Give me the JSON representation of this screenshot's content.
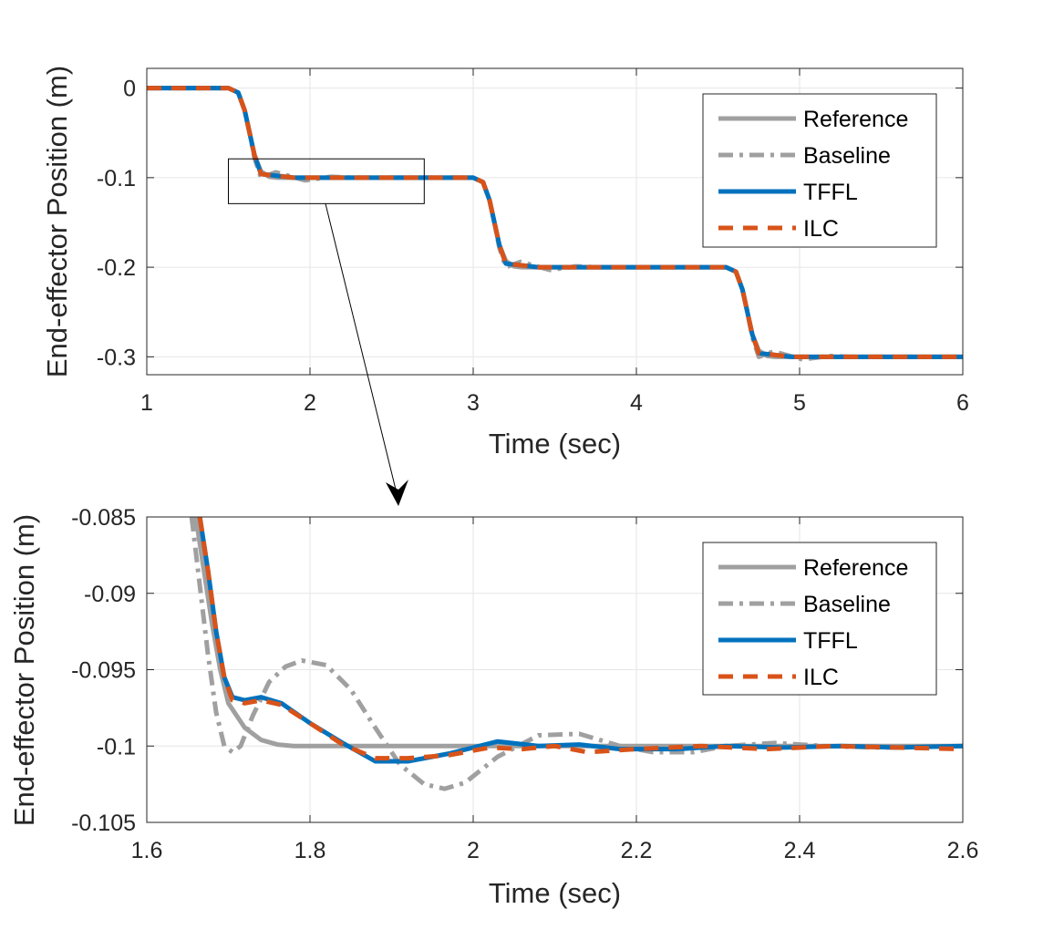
{
  "colors": {
    "reference": "#a0a0a0",
    "baseline": "#a0a0a0",
    "tffl": "#0072bd",
    "ilc": "#d95319",
    "grid": "#e6e6e6",
    "axis": "#262626"
  },
  "chart_data": [
    {
      "type": "line",
      "xlabel": "Time (sec)",
      "ylabel": "End-effector Position (m)",
      "xlim": [
        1,
        6
      ],
      "ylim": [
        -0.32,
        0.022
      ],
      "xticks": [
        "1",
        "2",
        "3",
        "4",
        "5",
        "6"
      ],
      "yticks": [
        "0",
        "-0.1",
        "-0.2",
        "-0.3"
      ],
      "grid": true,
      "legend_position": "top-right",
      "zoom_box": {
        "x": [
          1.5,
          2.7
        ],
        "y": [
          -0.129,
          -0.079
        ]
      },
      "series": [
        {
          "name": "Reference",
          "style": "solid",
          "points": [
            [
              1,
              0
            ],
            [
              1.5,
              0
            ],
            [
              1.56,
              -0.005
            ],
            [
              1.6,
              -0.025
            ],
            [
              1.63,
              -0.05
            ],
            [
              1.66,
              -0.075
            ],
            [
              1.7,
              -0.093
            ],
            [
              1.75,
              -0.099
            ],
            [
              1.8,
              -0.1
            ],
            [
              3.0,
              -0.1
            ],
            [
              3.06,
              -0.105
            ],
            [
              3.1,
              -0.125
            ],
            [
              3.13,
              -0.15
            ],
            [
              3.16,
              -0.175
            ],
            [
              3.2,
              -0.193
            ],
            [
              3.25,
              -0.199
            ],
            [
              3.3,
              -0.2
            ],
            [
              4.55,
              -0.2
            ],
            [
              4.61,
              -0.205
            ],
            [
              4.65,
              -0.225
            ],
            [
              4.68,
              -0.25
            ],
            [
              4.71,
              -0.275
            ],
            [
              4.75,
              -0.293
            ],
            [
              4.8,
              -0.299
            ],
            [
              4.85,
              -0.3
            ],
            [
              6,
              -0.3
            ]
          ]
        },
        {
          "name": "Baseline",
          "style": "dashdot",
          "points": [
            [
              1,
              0
            ],
            [
              1.5,
              0
            ],
            [
              1.56,
              -0.005
            ],
            [
              1.6,
              -0.025
            ],
            [
              1.63,
              -0.05
            ],
            [
              1.66,
              -0.078
            ],
            [
              1.7,
              -0.1
            ],
            [
              1.79,
              -0.094
            ],
            [
              1.97,
              -0.103
            ],
            [
              2.13,
              -0.099
            ],
            [
              2.25,
              -0.1
            ],
            [
              3.0,
              -0.1
            ],
            [
              3.06,
              -0.105
            ],
            [
              3.1,
              -0.125
            ],
            [
              3.13,
              -0.15
            ],
            [
              3.16,
              -0.178
            ],
            [
              3.2,
              -0.2
            ],
            [
              3.29,
              -0.194
            ],
            [
              3.47,
              -0.203
            ],
            [
              3.63,
              -0.199
            ],
            [
              3.75,
              -0.2
            ],
            [
              4.55,
              -0.2
            ],
            [
              4.61,
              -0.205
            ],
            [
              4.65,
              -0.225
            ],
            [
              4.68,
              -0.25
            ],
            [
              4.71,
              -0.278
            ],
            [
              4.75,
              -0.3
            ],
            [
              4.84,
              -0.294
            ],
            [
              5.02,
              -0.303
            ],
            [
              5.18,
              -0.299
            ],
            [
              5.3,
              -0.3
            ],
            [
              6,
              -0.3
            ]
          ]
        },
        {
          "name": "TFFL",
          "style": "solid",
          "points": [
            [
              1,
              0
            ],
            [
              1.5,
              0
            ],
            [
              1.56,
              -0.005
            ],
            [
              1.6,
              -0.025
            ],
            [
              1.63,
              -0.05
            ],
            [
              1.66,
              -0.075
            ],
            [
              1.7,
              -0.096
            ],
            [
              1.8,
              -0.098
            ],
            [
              1.9,
              -0.1
            ],
            [
              2.0,
              -0.1
            ],
            [
              3.0,
              -0.1
            ],
            [
              3.06,
              -0.105
            ],
            [
              3.1,
              -0.125
            ],
            [
              3.13,
              -0.15
            ],
            [
              3.16,
              -0.175
            ],
            [
              3.2,
              -0.196
            ],
            [
              3.3,
              -0.198
            ],
            [
              3.4,
              -0.2
            ],
            [
              4.55,
              -0.2
            ],
            [
              4.61,
              -0.205
            ],
            [
              4.65,
              -0.225
            ],
            [
              4.68,
              -0.25
            ],
            [
              4.71,
              -0.275
            ],
            [
              4.75,
              -0.296
            ],
            [
              4.85,
              -0.298
            ],
            [
              4.95,
              -0.3
            ],
            [
              6,
              -0.3
            ]
          ]
        },
        {
          "name": "ILC",
          "style": "dashed",
          "points": [
            [
              1,
              0
            ],
            [
              1.5,
              0
            ],
            [
              1.56,
              -0.005
            ],
            [
              1.6,
              -0.025
            ],
            [
              1.63,
              -0.05
            ],
            [
              1.66,
              -0.075
            ],
            [
              1.7,
              -0.096
            ],
            [
              1.8,
              -0.098
            ],
            [
              1.9,
              -0.1
            ],
            [
              2.0,
              -0.1
            ],
            [
              3.0,
              -0.1
            ],
            [
              3.06,
              -0.105
            ],
            [
              3.1,
              -0.125
            ],
            [
              3.13,
              -0.15
            ],
            [
              3.16,
              -0.175
            ],
            [
              3.2,
              -0.196
            ],
            [
              3.3,
              -0.198
            ],
            [
              3.4,
              -0.2
            ],
            [
              4.55,
              -0.2
            ],
            [
              4.61,
              -0.205
            ],
            [
              4.65,
              -0.225
            ],
            [
              4.68,
              -0.25
            ],
            [
              4.71,
              -0.275
            ],
            [
              4.75,
              -0.296
            ],
            [
              4.85,
              -0.298
            ],
            [
              4.95,
              -0.3
            ],
            [
              6,
              -0.3
            ]
          ]
        }
      ]
    },
    {
      "type": "line",
      "xlabel": "Time (sec)",
      "ylabel": "End-effector Position (m)",
      "xlim": [
        1.6,
        2.6
      ],
      "ylim": [
        -0.105,
        -0.085
      ],
      "xticks": [
        "1.6",
        "1.8",
        "2",
        "2.2",
        "2.4",
        "2.6"
      ],
      "yticks": [
        "-0.085",
        "-0.09",
        "-0.095",
        "-0.1",
        "-0.105"
      ],
      "grid": true,
      "legend_position": "top-right",
      "series": [
        {
          "name": "Reference",
          "style": "solid",
          "points": [
            [
              1.66,
              -0.085
            ],
            [
              1.67,
              -0.0885
            ],
            [
              1.68,
              -0.092
            ],
            [
              1.69,
              -0.095
            ],
            [
              1.7,
              -0.0972
            ],
            [
              1.72,
              -0.0988
            ],
            [
              1.74,
              -0.0996
            ],
            [
              1.76,
              -0.0999
            ],
            [
              1.78,
              -0.1
            ],
            [
              2.6,
              -0.1
            ]
          ]
        },
        {
          "name": "Baseline",
          "style": "dashdot",
          "points": [
            [
              1.655,
              -0.085
            ],
            [
              1.665,
              -0.0895
            ],
            [
              1.675,
              -0.094
            ],
            [
              1.685,
              -0.0978
            ],
            [
              1.695,
              -0.1
            ],
            [
              1.705,
              -0.1004
            ],
            [
              1.715,
              -0.1
            ],
            [
              1.73,
              -0.098
            ],
            [
              1.75,
              -0.0958
            ],
            [
              1.77,
              -0.0948
            ],
            [
              1.79,
              -0.0944
            ],
            [
              1.82,
              -0.0947
            ],
            [
              1.85,
              -0.0963
            ],
            [
              1.88,
              -0.0988
            ],
            [
              1.91,
              -0.1012
            ],
            [
              1.94,
              -0.1025
            ],
            [
              1.965,
              -0.1028
            ],
            [
              1.99,
              -0.1024
            ],
            [
              2.03,
              -0.1007
            ],
            [
              2.08,
              -0.0993
            ],
            [
              2.13,
              -0.0992
            ],
            [
              2.18,
              -0.1
            ],
            [
              2.22,
              -0.1004
            ],
            [
              2.27,
              -0.1004
            ],
            [
              2.31,
              -0.1
            ],
            [
              2.37,
              -0.0998
            ],
            [
              2.43,
              -0.1
            ],
            [
              2.5,
              -0.1001
            ],
            [
              2.6,
              -0.1
            ]
          ]
        },
        {
          "name": "TFFL",
          "style": "solid",
          "points": [
            [
              1.665,
              -0.085
            ],
            [
              1.675,
              -0.0885
            ],
            [
              1.685,
              -0.0925
            ],
            [
              1.695,
              -0.0955
            ],
            [
              1.705,
              -0.0968
            ],
            [
              1.72,
              -0.097
            ],
            [
              1.74,
              -0.0968
            ],
            [
              1.765,
              -0.0972
            ],
            [
              1.8,
              -0.0985
            ],
            [
              1.84,
              -0.0998
            ],
            [
              1.88,
              -0.101
            ],
            [
              1.92,
              -0.101
            ],
            [
              1.97,
              -0.1005
            ],
            [
              2.03,
              -0.0997
            ],
            [
              2.08,
              -0.1
            ],
            [
              2.13,
              -0.0999
            ],
            [
              2.18,
              -0.1002
            ],
            [
              2.25,
              -0.1002
            ],
            [
              2.31,
              -0.1
            ],
            [
              2.38,
              -0.1001
            ],
            [
              2.45,
              -0.1
            ],
            [
              2.52,
              -0.1001
            ],
            [
              2.6,
              -0.1
            ]
          ]
        },
        {
          "name": "ILC",
          "style": "dashed",
          "points": [
            [
              1.665,
              -0.085
            ],
            [
              1.675,
              -0.0885
            ],
            [
              1.685,
              -0.0925
            ],
            [
              1.695,
              -0.0955
            ],
            [
              1.705,
              -0.097
            ],
            [
              1.72,
              -0.0972
            ],
            [
              1.74,
              -0.097
            ],
            [
              1.765,
              -0.0973
            ],
            [
              1.8,
              -0.0985
            ],
            [
              1.84,
              -0.0999
            ],
            [
              1.88,
              -0.1008
            ],
            [
              1.92,
              -0.1008
            ],
            [
              1.97,
              -0.1006
            ],
            [
              2.02,
              -0.1001
            ],
            [
              2.06,
              -0.1002
            ],
            [
              2.1,
              -0.1
            ],
            [
              2.14,
              -0.1004
            ],
            [
              2.2,
              -0.1002
            ],
            [
              2.28,
              -0.1
            ],
            [
              2.36,
              -0.1002
            ],
            [
              2.44,
              -0.1
            ],
            [
              2.52,
              -0.1001
            ],
            [
              2.6,
              -0.1002
            ]
          ]
        }
      ]
    }
  ]
}
